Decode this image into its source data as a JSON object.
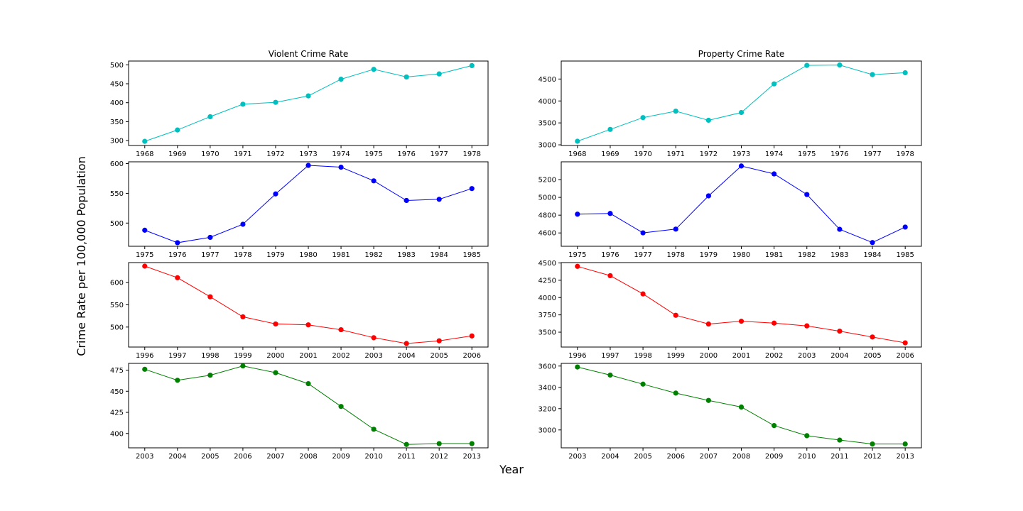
{
  "figure": {
    "xlabel": "Year",
    "ylabel": "Crime Rate per 100,000 Population"
  },
  "chart_data": [
    {
      "type": "line",
      "panel": "violent-1",
      "title": "Violent Crime Rate",
      "color": "#00bfbf",
      "x": [
        1968,
        1969,
        1970,
        1971,
        1972,
        1973,
        1974,
        1975,
        1976,
        1977,
        1978
      ],
      "values": [
        298,
        328,
        363,
        396,
        401,
        418,
        462,
        488,
        468,
        476,
        498
      ],
      "ylim": [
        287,
        510
      ],
      "yticks": [
        300,
        350,
        400,
        450,
        500
      ]
    },
    {
      "type": "line",
      "panel": "property-1",
      "title": "Property Crime Rate",
      "color": "#00bfbf",
      "x": [
        1968,
        1969,
        1970,
        1971,
        1972,
        1973,
        1974,
        1975,
        1976,
        1977,
        1978
      ],
      "values": [
        3082,
        3352,
        3621,
        3768,
        3560,
        3737,
        4389,
        4811,
        4819,
        4601,
        4643
      ],
      "ylim": [
        2985,
        4910
      ],
      "yticks": [
        3000,
        3500,
        4000,
        4500
      ]
    },
    {
      "type": "line",
      "panel": "violent-2",
      "title": "",
      "color": "#0000ff",
      "x": [
        1975,
        1976,
        1977,
        1978,
        1979,
        1980,
        1981,
        1982,
        1983,
        1984,
        1985
      ],
      "values": [
        488,
        467,
        476,
        498,
        549,
        597,
        594,
        571,
        538,
        540,
        558
      ],
      "ylim": [
        461,
        603
      ],
      "yticks": [
        500,
        550,
        600
      ]
    },
    {
      "type": "line",
      "panel": "property-2",
      "title": "",
      "color": "#0000ff",
      "x": [
        1975,
        1976,
        1977,
        1978,
        1979,
        1980,
        1981,
        1982,
        1983,
        1984,
        1985
      ],
      "values": [
        4811,
        4819,
        4601,
        4643,
        5017,
        5353,
        5264,
        5032,
        4641,
        4492,
        4666
      ],
      "ylim": [
        4450,
        5400
      ],
      "yticks": [
        4600,
        4800,
        5000,
        5200
      ]
    },
    {
      "type": "line",
      "panel": "violent-3",
      "title": "",
      "color": "#ff0000",
      "x": [
        1996,
        1997,
        1998,
        1999,
        2000,
        2001,
        2002,
        2003,
        2004,
        2005,
        2006
      ],
      "values": [
        637,
        611,
        568,
        523,
        507,
        505,
        494,
        476,
        463,
        469,
        480
      ],
      "ylim": [
        455,
        645
      ],
      "yticks": [
        500,
        550,
        600
      ]
    },
    {
      "type": "line",
      "panel": "property-3",
      "title": "",
      "color": "#ff0000",
      "x": [
        1996,
        1997,
        1998,
        1999,
        2000,
        2001,
        2002,
        2003,
        2004,
        2005,
        2006
      ],
      "values": [
        4451,
        4316,
        4053,
        3744,
        3618,
        3658,
        3631,
        3591,
        3515,
        3430,
        3346
      ],
      "ylim": [
        3285,
        4505
      ],
      "yticks": [
        3500,
        3750,
        4000,
        4250,
        4500
      ]
    },
    {
      "type": "line",
      "panel": "violent-4",
      "title": "",
      "color": "#008000",
      "x": [
        2003,
        2004,
        2005,
        2006,
        2007,
        2008,
        2009,
        2010,
        2011,
        2012,
        2013
      ],
      "values": [
        476,
        463,
        469,
        480,
        472,
        459,
        432,
        405,
        387,
        388,
        388
      ],
      "ylim": [
        383,
        483
      ],
      "yticks": [
        400,
        425,
        450,
        475
      ]
    },
    {
      "type": "line",
      "panel": "property-4",
      "title": "",
      "color": "#008000",
      "x": [
        2003,
        2004,
        2005,
        2006,
        2007,
        2008,
        2009,
        2010,
        2011,
        2012,
        2013
      ],
      "values": [
        3591,
        3515,
        3430,
        3346,
        3277,
        3215,
        3041,
        2946,
        2905,
        2868,
        2868
      ],
      "ylim": [
        2832,
        3625
      ],
      "yticks": [
        3000,
        3200,
        3400,
        3600
      ]
    }
  ]
}
